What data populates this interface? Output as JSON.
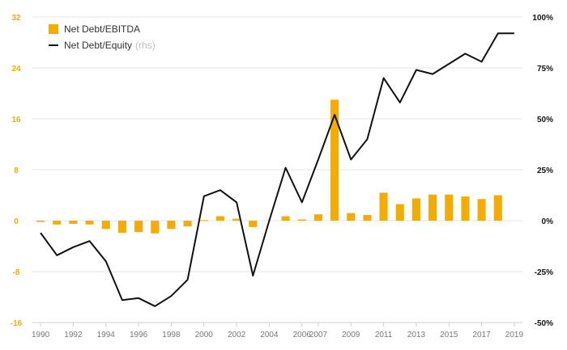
{
  "colors": {
    "bar": "#f5ac00",
    "line": "#111111",
    "grid": "#e6e6e6",
    "left_axis_text": "#f5ac00",
    "right_axis_text": "#111111",
    "x_axis_text": "#777777"
  },
  "legend": {
    "bar_label": "Net Debt/EBITDA",
    "line_label": "Net Debt/Equity",
    "line_suffix": "(rhs)"
  },
  "chart_data": {
    "type": "bar",
    "categories": [
      1990,
      1991,
      1992,
      1993,
      1994,
      1995,
      1996,
      1997,
      1998,
      1999,
      2000,
      2001,
      2002,
      2003,
      2004,
      2005,
      2006,
      2007,
      2008,
      2009,
      2010,
      2011,
      2012,
      2013,
      2014,
      2015,
      2016,
      2017,
      2018,
      2019
    ],
    "x_tick_labels": [
      "1990",
      "1992",
      "1994",
      "1996",
      "1998",
      "2000",
      "2002",
      "2004",
      "2006",
      "2007",
      "2009",
      "2011",
      "2013",
      "2015",
      "2017",
      "2019"
    ],
    "x_tick_years": [
      1990,
      1992,
      1994,
      1996,
      1998,
      2000,
      2002,
      2004,
      2006,
      2007,
      2009,
      2011,
      2013,
      2015,
      2017,
      2019
    ],
    "left_axis": {
      "ylim": [
        -16,
        32
      ],
      "ticks": [
        -16,
        -8,
        0,
        8,
        16,
        24,
        32
      ],
      "tick_labels": [
        "-16",
        "-8",
        "0",
        "8",
        "16",
        "24",
        "32"
      ]
    },
    "right_axis": {
      "ylim": [
        -50,
        100
      ],
      "ticks": [
        -50,
        -25,
        0,
        25,
        50,
        75,
        100
      ],
      "tick_labels": [
        "-50%",
        "-25%",
        "0%",
        "25%",
        "50%",
        "75%",
        "100%"
      ]
    },
    "grid": true,
    "legend_position": "top-left",
    "series": [
      {
        "name": "Net Debt/EBITDA",
        "type": "bar",
        "axis": "left",
        "values": [
          -0.2,
          -0.6,
          -0.5,
          -0.6,
          -1.3,
          -1.9,
          -1.8,
          -2.0,
          -1.3,
          -0.9,
          0.1,
          0.7,
          0.3,
          -1.0,
          0.0,
          0.7,
          0.2,
          1.0,
          19.0,
          1.2,
          0.9,
          4.4,
          2.6,
          3.5,
          4.1,
          4.1,
          3.8,
          3.4,
          4.0,
          0.0
        ]
      },
      {
        "name": "Net Debt/Equity",
        "type": "line",
        "axis": "right",
        "values": [
          -6,
          -17,
          -13,
          -10,
          -20,
          -39,
          -38,
          -42,
          -37,
          -29,
          12,
          15,
          9,
          -27,
          0,
          26,
          9,
          30,
          52,
          30,
          40,
          70,
          58,
          74,
          72,
          77,
          82,
          78,
          92,
          92
        ]
      }
    ]
  }
}
